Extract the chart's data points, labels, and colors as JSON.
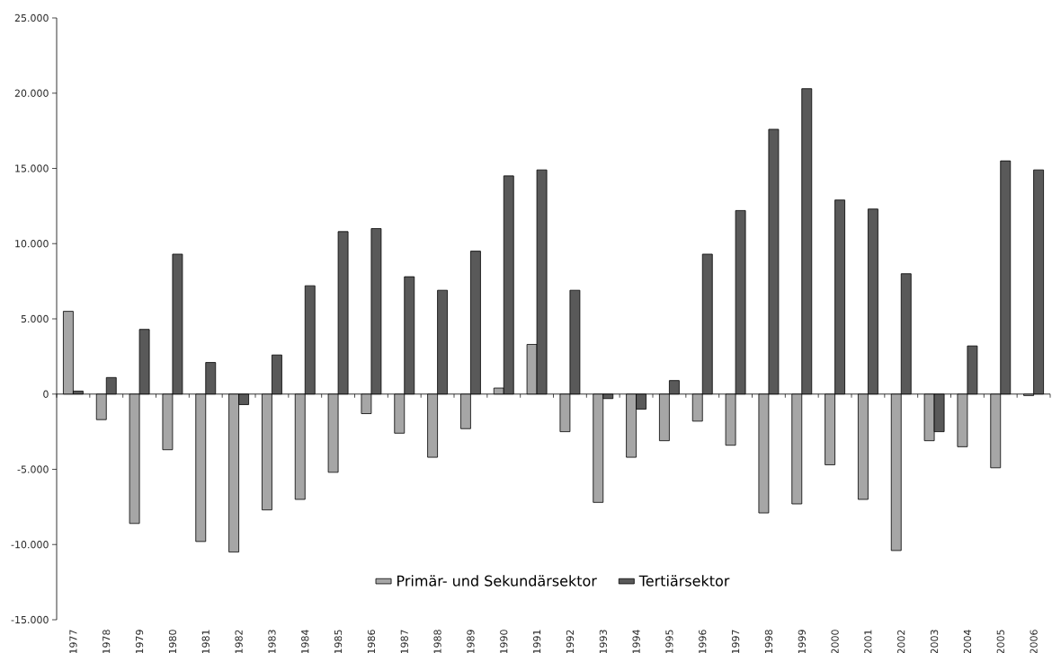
{
  "chart_data": {
    "type": "bar",
    "categories": [
      "1977",
      "1978",
      "1979",
      "1980",
      "1981",
      "1982",
      "1983",
      "1984",
      "1985",
      "1986",
      "1987",
      "1988",
      "1989",
      "1990",
      "1991",
      "1992",
      "1993",
      "1994",
      "1995",
      "1996",
      "1997",
      "1998",
      "1999",
      "2000",
      "2001",
      "2002",
      "2003",
      "2004",
      "2005",
      "2006"
    ],
    "series": [
      {
        "name": "Primär- und Sekundärsektor",
        "color": "#a6a6a6",
        "values": [
          5500,
          -1700,
          -8600,
          -3700,
          -9800,
          -10500,
          -7700,
          -7000,
          -5200,
          -1300,
          -2600,
          -4200,
          -2300,
          400,
          3300,
          -2500,
          -7200,
          -4200,
          -3100,
          -1800,
          -3400,
          -7900,
          -7300,
          -4700,
          -7000,
          -10400,
          -3100,
          -3500,
          -4900,
          -100
        ]
      },
      {
        "name": "Tertiärsektor",
        "color": "#595959",
        "values": [
          200,
          1100,
          4300,
          9300,
          2100,
          -700,
          2600,
          7200,
          10800,
          11000,
          7800,
          6900,
          9500,
          14500,
          14900,
          6900,
          -300,
          -1000,
          900,
          9300,
          12200,
          17600,
          20300,
          12900,
          12300,
          8000,
          -2500,
          3200,
          15500,
          14900
        ]
      }
    ],
    "ylim": [
      -15000,
      25000
    ],
    "yticks": [
      {
        "value": -15000,
        "label": "-15.000"
      },
      {
        "value": -10000,
        "label": "-10.000"
      },
      {
        "value": -5000,
        "label": "-5.000"
      },
      0,
      {
        "value": 5000,
        "label": "5.000"
      },
      {
        "value": 10000,
        "label": "10.000"
      },
      {
        "value": 15000,
        "label": "15.000"
      },
      {
        "value": 20000,
        "label": "20.000"
      },
      {
        "value": 25000,
        "label": "25.000"
      }
    ],
    "legend": "bottom"
  }
}
